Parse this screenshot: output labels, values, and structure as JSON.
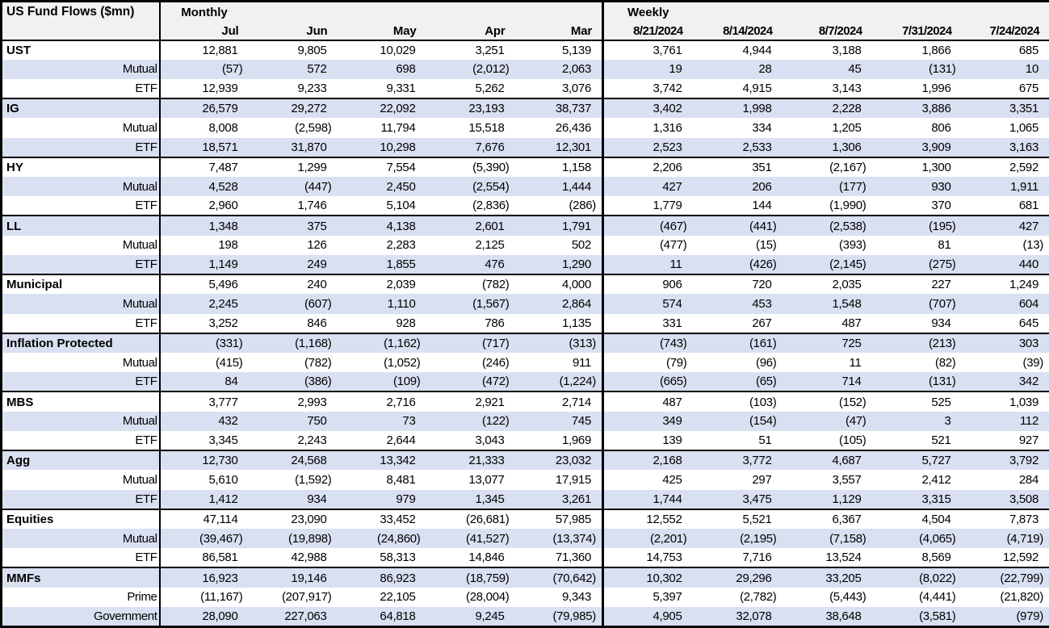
{
  "title": "US Fund Flows ($mn)",
  "colors": {
    "band": "#d9e0f2",
    "header_bg": "#f1f1f1",
    "border": "#000000"
  },
  "header": {
    "monthly_label": "Monthly",
    "weekly_label": "Weekly",
    "monthly_columns": [
      "Jul",
      "Jun",
      "May",
      "Apr",
      "Mar"
    ],
    "weekly_columns": [
      "8/21/2024",
      "8/14/2024",
      "8/7/2024",
      "7/31/2024",
      "7/24/2024"
    ]
  },
  "groups": [
    {
      "name": "UST",
      "monthly": [
        "12,881",
        "9,805",
        "10,029",
        "3,251",
        "5,139"
      ],
      "weekly": [
        "3,761",
        "4,944",
        "3,188",
        "1,866",
        "685"
      ],
      "rows": [
        {
          "label": "Mutual",
          "monthly": [
            "(57)",
            "572",
            "698",
            "(2,012)",
            "2,063"
          ],
          "weekly": [
            "19",
            "28",
            "45",
            "(131)",
            "10"
          ]
        },
        {
          "label": "ETF",
          "monthly": [
            "12,939",
            "9,233",
            "9,331",
            "5,262",
            "3,076"
          ],
          "weekly": [
            "3,742",
            "4,915",
            "3,143",
            "1,996",
            "675"
          ]
        }
      ]
    },
    {
      "name": "IG",
      "monthly": [
        "26,579",
        "29,272",
        "22,092",
        "23,193",
        "38,737"
      ],
      "weekly": [
        "3,402",
        "1,998",
        "2,228",
        "3,886",
        "3,351"
      ],
      "rows": [
        {
          "label": "Mutual",
          "monthly": [
            "8,008",
            "(2,598)",
            "11,794",
            "15,518",
            "26,436"
          ],
          "weekly": [
            "1,316",
            "334",
            "1,205",
            "806",
            "1,065"
          ]
        },
        {
          "label": "ETF",
          "monthly": [
            "18,571",
            "31,870",
            "10,298",
            "7,676",
            "12,301"
          ],
          "weekly": [
            "2,523",
            "2,533",
            "1,306",
            "3,909",
            "3,163"
          ]
        }
      ]
    },
    {
      "name": "HY",
      "monthly": [
        "7,487",
        "1,299",
        "7,554",
        "(5,390)",
        "1,158"
      ],
      "weekly": [
        "2,206",
        "351",
        "(2,167)",
        "1,300",
        "2,592"
      ],
      "rows": [
        {
          "label": "Mutual",
          "monthly": [
            "4,528",
            "(447)",
            "2,450",
            "(2,554)",
            "1,444"
          ],
          "weekly": [
            "427",
            "206",
            "(177)",
            "930",
            "1,911"
          ]
        },
        {
          "label": "ETF",
          "monthly": [
            "2,960",
            "1,746",
            "5,104",
            "(2,836)",
            "(286)"
          ],
          "weekly": [
            "1,779",
            "144",
            "(1,990)",
            "370",
            "681"
          ]
        }
      ]
    },
    {
      "name": "LL",
      "monthly": [
        "1,348",
        "375",
        "4,138",
        "2,601",
        "1,791"
      ],
      "weekly": [
        "(467)",
        "(441)",
        "(2,538)",
        "(195)",
        "427"
      ],
      "rows": [
        {
          "label": "Mutual",
          "monthly": [
            "198",
            "126",
            "2,283",
            "2,125",
            "502"
          ],
          "weekly": [
            "(477)",
            "(15)",
            "(393)",
            "81",
            "(13)"
          ]
        },
        {
          "label": "ETF",
          "monthly": [
            "1,149",
            "249",
            "1,855",
            "476",
            "1,290"
          ],
          "weekly": [
            "11",
            "(426)",
            "(2,145)",
            "(275)",
            "440"
          ]
        }
      ]
    },
    {
      "name": "Municipal",
      "monthly": [
        "5,496",
        "240",
        "2,039",
        "(782)",
        "4,000"
      ],
      "weekly": [
        "906",
        "720",
        "2,035",
        "227",
        "1,249"
      ],
      "rows": [
        {
          "label": "Mutual",
          "monthly": [
            "2,245",
            "(607)",
            "1,110",
            "(1,567)",
            "2,864"
          ],
          "weekly": [
            "574",
            "453",
            "1,548",
            "(707)",
            "604"
          ]
        },
        {
          "label": "ETF",
          "monthly": [
            "3,252",
            "846",
            "928",
            "786",
            "1,135"
          ],
          "weekly": [
            "331",
            "267",
            "487",
            "934",
            "645"
          ]
        }
      ]
    },
    {
      "name": "Inflation Protected",
      "monthly": [
        "(331)",
        "(1,168)",
        "(1,162)",
        "(717)",
        "(313)"
      ],
      "weekly": [
        "(743)",
        "(161)",
        "725",
        "(213)",
        "303"
      ],
      "rows": [
        {
          "label": "Mutual",
          "monthly": [
            "(415)",
            "(782)",
            "(1,052)",
            "(246)",
            "911"
          ],
          "weekly": [
            "(79)",
            "(96)",
            "11",
            "(82)",
            "(39)"
          ]
        },
        {
          "label": "ETF",
          "monthly": [
            "84",
            "(386)",
            "(109)",
            "(472)",
            "(1,224)"
          ],
          "weekly": [
            "(665)",
            "(65)",
            "714",
            "(131)",
            "342"
          ]
        }
      ]
    },
    {
      "name": "MBS",
      "monthly": [
        "3,777",
        "2,993",
        "2,716",
        "2,921",
        "2,714"
      ],
      "weekly": [
        "487",
        "(103)",
        "(152)",
        "525",
        "1,039"
      ],
      "rows": [
        {
          "label": "Mutual",
          "monthly": [
            "432",
            "750",
            "73",
            "(122)",
            "745"
          ],
          "weekly": [
            "349",
            "(154)",
            "(47)",
            "3",
            "112"
          ]
        },
        {
          "label": "ETF",
          "monthly": [
            "3,345",
            "2,243",
            "2,644",
            "3,043",
            "1,969"
          ],
          "weekly": [
            "139",
            "51",
            "(105)",
            "521",
            "927"
          ]
        }
      ]
    },
    {
      "name": "Agg",
      "monthly": [
        "12,730",
        "24,568",
        "13,342",
        "21,333",
        "23,032"
      ],
      "weekly": [
        "2,168",
        "3,772",
        "4,687",
        "5,727",
        "3,792"
      ],
      "rows": [
        {
          "label": "Mutual",
          "monthly": [
            "5,610",
            "(1,592)",
            "8,481",
            "13,077",
            "17,915"
          ],
          "weekly": [
            "425",
            "297",
            "3,557",
            "2,412",
            "284"
          ]
        },
        {
          "label": "ETF",
          "monthly": [
            "1,412",
            "934",
            "979",
            "1,345",
            "3,261"
          ],
          "weekly": [
            "1,744",
            "3,475",
            "1,129",
            "3,315",
            "3,508"
          ]
        }
      ]
    },
    {
      "name": "Equities",
      "monthly": [
        "47,114",
        "23,090",
        "33,452",
        "(26,681)",
        "57,985"
      ],
      "weekly": [
        "12,552",
        "5,521",
        "6,367",
        "4,504",
        "7,873"
      ],
      "rows": [
        {
          "label": "Mutual",
          "monthly": [
            "(39,467)",
            "(19,898)",
            "(24,860)",
            "(41,527)",
            "(13,374)"
          ],
          "weekly": [
            "(2,201)",
            "(2,195)",
            "(7,158)",
            "(4,065)",
            "(4,719)"
          ]
        },
        {
          "label": "ETF",
          "monthly": [
            "86,581",
            "42,988",
            "58,313",
            "14,846",
            "71,360"
          ],
          "weekly": [
            "14,753",
            "7,716",
            "13,524",
            "8,569",
            "12,592"
          ]
        }
      ]
    },
    {
      "name": "MMFs",
      "monthly": [
        "16,923",
        "19,146",
        "86,923",
        "(18,759)",
        "(70,642)"
      ],
      "weekly": [
        "10,302",
        "29,296",
        "33,205",
        "(8,022)",
        "(22,799)"
      ],
      "rows": [
        {
          "label": "Prime",
          "monthly": [
            "(11,167)",
            "(207,917)",
            "22,105",
            "(28,004)",
            "9,343"
          ],
          "weekly": [
            "5,397",
            "(2,782)",
            "(5,443)",
            "(4,441)",
            "(21,820)"
          ]
        },
        {
          "label": "Government",
          "monthly": [
            "28,090",
            "227,063",
            "64,818",
            "9,245",
            "(79,985)"
          ],
          "weekly": [
            "4,905",
            "32,078",
            "38,648",
            "(3,581)",
            "(979)"
          ]
        }
      ]
    }
  ]
}
